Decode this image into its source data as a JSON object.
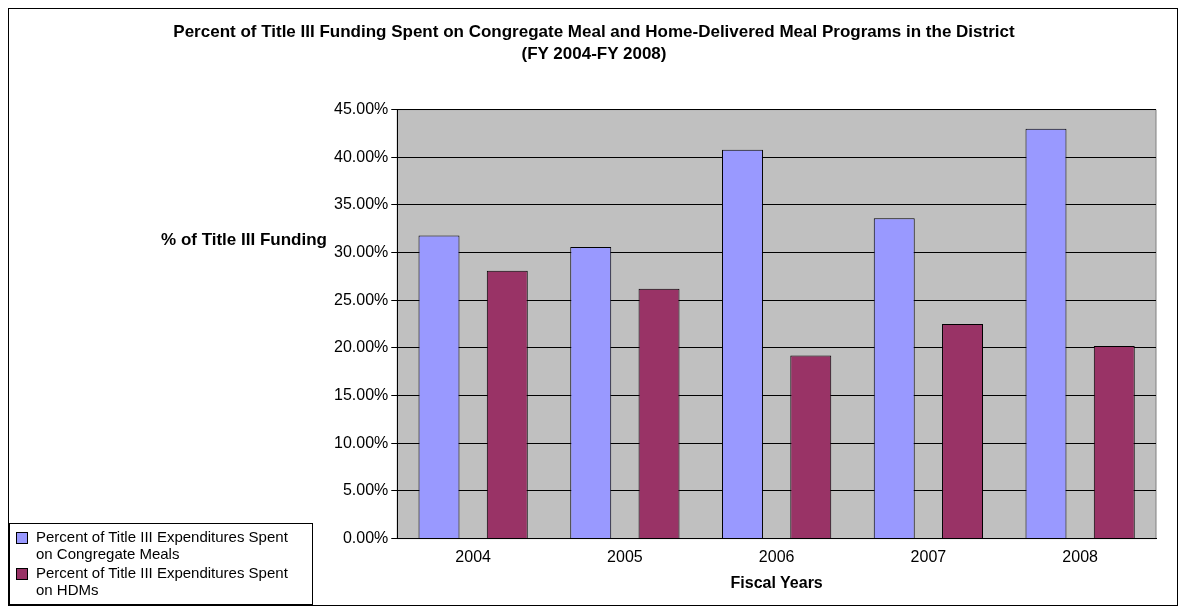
{
  "chart_data": {
    "type": "bar",
    "title": "Percent of Title III Funding Spent on Congregate Meal and Home-Delivered Meal Programs in the District (FY 2004-FY 2008)",
    "xlabel": "Fiscal Years",
    "ylabel": "% of Title III Funding",
    "categories": [
      "2004",
      "2005",
      "2006",
      "2007",
      "2008"
    ],
    "series": [
      {
        "name": "Percent of Title III Expenditures Spent on Congregate Meals",
        "color": "#9999ff",
        "values": [
          31.8,
          30.6,
          40.8,
          33.6,
          43.0
        ]
      },
      {
        "name": "Percent of Title III Expenditures Spent on HDMs",
        "color": "#993366",
        "values": [
          28.1,
          26.2,
          19.2,
          22.5,
          20.2
        ]
      }
    ],
    "ylim": [
      0,
      45
    ],
    "yticks": [
      {
        "value": 0,
        "label": "0.00%"
      },
      {
        "value": 5,
        "label": "5.00%"
      },
      {
        "value": 10,
        "label": "10.00%"
      },
      {
        "value": 15,
        "label": "15.00%"
      },
      {
        "value": 20,
        "label": "20.00%"
      },
      {
        "value": 25,
        "label": "25.00%"
      },
      {
        "value": 30,
        "label": "30.00%"
      },
      {
        "value": 35,
        "label": "35.00%"
      },
      {
        "value": 40,
        "label": "40.00%"
      },
      {
        "value": 45,
        "label": "45.00%"
      }
    ],
    "grid": "y",
    "legend": "bottom left"
  }
}
